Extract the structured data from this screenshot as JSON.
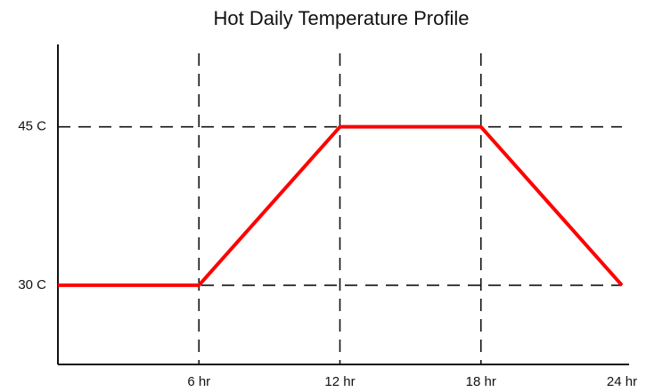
{
  "chart_data": {
    "type": "line",
    "title": "Hot Daily Temperature Profile",
    "x": [
      0,
      6,
      12,
      18,
      24
    ],
    "series": [
      {
        "color": "#ff0000",
        "values": [
          30,
          30,
          45,
          45,
          30
        ]
      }
    ],
    "xlim": [
      0,
      24
    ],
    "ylim": [
      22.5,
      52.8
    ],
    "xticks": [
      {
        "value": 6,
        "label": "6 hr"
      },
      {
        "value": 12,
        "label": "12 hr"
      },
      {
        "value": 18,
        "label": "18 hr"
      },
      {
        "value": 24,
        "label": "24 hr"
      }
    ],
    "yticks": [
      {
        "value": 30,
        "label": "30 C"
      },
      {
        "value": 45,
        "label": "45 C"
      }
    ],
    "grid": true,
    "grid_style": "dashed"
  }
}
